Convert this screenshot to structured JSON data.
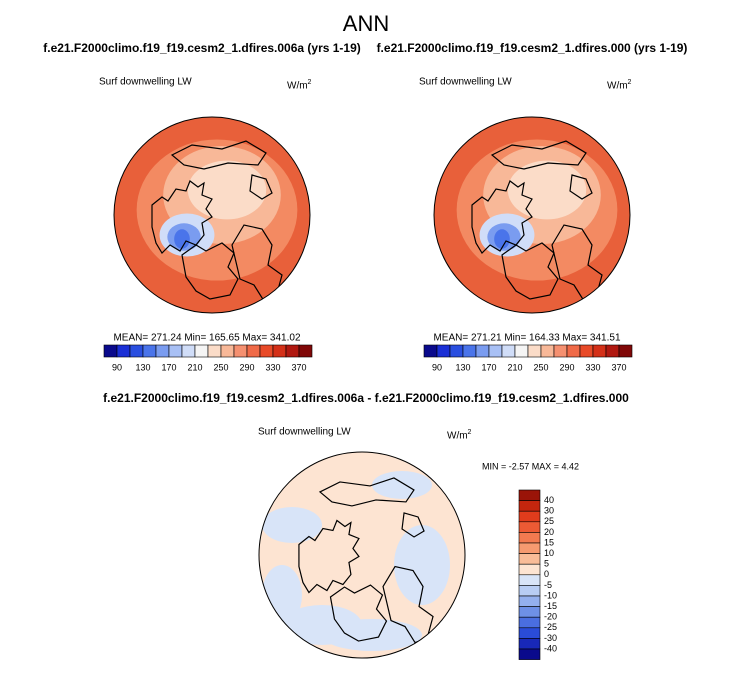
{
  "title": "ANN",
  "panels": [
    {
      "case_title": "f.e21.F2000climo.f19_f19.cesm2_1.dfires.006a (yrs 1-19)",
      "label": "Surf downwelling LW",
      "units": "W/m",
      "units_exp": "2",
      "stats": "MEAN= 271.24  Min= 165.65  Max= 341.02",
      "colorbar": {
        "colors": [
          "#0a0a8c",
          "#1a2fd6",
          "#2a4fe0",
          "#4a74ea",
          "#7a9cf0",
          "#a8c0f5",
          "#d0ddf8",
          "#f5f5f5",
          "#fbdcc8",
          "#f8b898",
          "#f59070",
          "#f06a48",
          "#e84a28",
          "#d43018",
          "#b01810",
          "#800808"
        ],
        "labels": [
          90,
          130,
          170,
          210,
          250,
          290,
          330,
          370
        ]
      }
    },
    {
      "case_title": "f.e21.F2000climo.f19_f19.cesm2_1.dfires.000 (yrs 1-19)",
      "label": "Surf downwelling LW",
      "units": "W/m",
      "units_exp": "2",
      "stats": "MEAN= 271.21  Min= 164.33  Max= 341.51",
      "colorbar": {
        "colors": [
          "#0a0a8c",
          "#1a2fd6",
          "#2a4fe0",
          "#4a74ea",
          "#7a9cf0",
          "#a8c0f5",
          "#d0ddf8",
          "#f5f5f5",
          "#fbdcc8",
          "#f8b898",
          "#f59070",
          "#f06a48",
          "#e84a28",
          "#d43018",
          "#b01810",
          "#800808"
        ],
        "labels": [
          90,
          130,
          170,
          210,
          250,
          290,
          330,
          370
        ]
      }
    }
  ],
  "difference": {
    "title": "f.e21.F2000climo.f19_f19.cesm2_1.dfires.006a - f.e21.F2000climo.f19_f19.cesm2_1.dfires.000",
    "label": "Surf downwelling LW",
    "units": "W/m",
    "units_exp": "2",
    "stats": "MIN =  -2.57 MAX =   4.42",
    "colorbar": {
      "colors": [
        "#9a1408",
        "#c4260e",
        "#e03c1c",
        "#ec5a34",
        "#f27a50",
        "#f69a70",
        "#f9bc98",
        "#fde4d2",
        "#d8e4f8",
        "#b8cdf4",
        "#94b0ee",
        "#6e90e6",
        "#4a6ee0",
        "#2a4cd8",
        "#1828b8",
        "#0a0a8c"
      ],
      "labels": [
        40,
        30,
        25,
        20,
        15,
        10,
        5,
        0,
        -5,
        -10,
        -15,
        -20,
        -25,
        -30,
        -40
      ]
    }
  }
}
